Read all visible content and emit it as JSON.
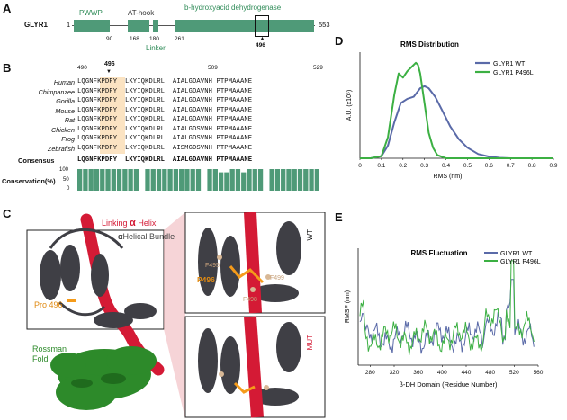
{
  "panels": {
    "a": "A",
    "b": "B",
    "c": "C",
    "d": "D",
    "e": "E"
  },
  "panel_a": {
    "protein": "GLYR1",
    "start": "1",
    "end": "553",
    "domains": {
      "pwwp": "PWWP",
      "athook": "AT-hook",
      "dehydrogenase": "b-hydroxyacid dehydrogenase",
      "linker": "Linker"
    },
    "positions": [
      "90",
      "168",
      "180",
      "261"
    ],
    "marker": "496"
  },
  "panel_b": {
    "positions": [
      "490",
      "496",
      "509",
      "529"
    ],
    "species": [
      "Human",
      "Chimpanzee",
      "Gorilla",
      "Mouse",
      "Rat",
      "Chicken",
      "Frog",
      "Zebrafish"
    ],
    "sequences": [
      "LQGNFKPDFY  LKYIQKDLRL  AIALGDAVNH PTPMAAANE",
      "LQGNFKPDFY  LKYIQKDLRL  AIALGDAVNH PTPMAAANE",
      "LQGNFKPDFY  LKYIQKDLRL  AIALGDAVNH PTPMAAANE",
      "LQGNFKPDFY  LKYIQKDLRL  AIALGDAVNH PTPMAAANE",
      "LQGNFKPDFY  LKYIQKDLRL  AIALGDAVNH PTPMAAANE",
      "LQGNFKPDFY  LKYIQKDLRL  AIALGDSVNH PTPMAAANE",
      "LQGNFKPDFY  LKYIQKDLRL  AIALGDSVNH PTPMAAANE",
      "LQGNFKPDFY  LKYIQKDLRL  AISMGDSVNH PTPMAAANE"
    ],
    "consensus_label": "Consensus",
    "consensus": "LQGNFKPDFY  LKYIQKDLRL  AIALGDAVNH PTPMAAANE",
    "conservation_label": "Conservation(%)",
    "conservation_ticks": [
      "100",
      "50",
      "0"
    ],
    "conservation_values": [
      100,
      100,
      100,
      100,
      100,
      100,
      100,
      100,
      100,
      100,
      100,
      0,
      100,
      100,
      100,
      100,
      100,
      100,
      100,
      100,
      100,
      100,
      0,
      100,
      100,
      85,
      85,
      100,
      100,
      85,
      100,
      100,
      100,
      0,
      100,
      100,
      100,
      100,
      100,
      100,
      100,
      100,
      100
    ]
  },
  "panel_c": {
    "linking_helix": "Linking",
    "alpha": "α",
    "helix": "Helix",
    "helical_bundle": "Helical Bundle",
    "pro496": "Pro 496",
    "rossman": "Rossman",
    "fold": "Fold",
    "wt": "WT",
    "mut": "MUT",
    "labels_top": [
      "F499",
      "F495",
      "F498"
    ],
    "p496": "P496"
  },
  "chart_data": [
    {
      "type": "line",
      "title": "RMS Distribution",
      "xlabel": "RMS (nm)",
      "ylabel": "A.U. (x10⁵)",
      "xlim": [
        0,
        0.9
      ],
      "ylim": [
        0,
        5
      ],
      "xticks": [
        "0",
        "0.1",
        "0.2",
        "0.3",
        "0.4",
        "0.5",
        "0.6",
        "0.7",
        "0.8",
        "0.9"
      ],
      "yticks": [
        "0",
        "1",
        "2",
        "3",
        "4",
        "5"
      ],
      "series": [
        {
          "name": "GLYR1 WT",
          "color": "#5a6aa8",
          "x": [
            0,
            0.05,
            0.1,
            0.13,
            0.16,
            0.19,
            0.22,
            0.25,
            0.28,
            0.3,
            0.32,
            0.35,
            0.38,
            0.42,
            0.46,
            0.5,
            0.55,
            0.6,
            0.65,
            0.7,
            0.9
          ],
          "y": [
            0,
            0,
            0.1,
            0.6,
            1.7,
            2.6,
            2.8,
            2.9,
            3.3,
            3.4,
            3.3,
            2.9,
            2.3,
            1.5,
            0.9,
            0.5,
            0.2,
            0.08,
            0.02,
            0,
            0
          ]
        },
        {
          "name": "GLYR1 P496L",
          "color": "#3cb043",
          "x": [
            0,
            0.05,
            0.1,
            0.13,
            0.16,
            0.18,
            0.2,
            0.22,
            0.24,
            0.26,
            0.27,
            0.28,
            0.3,
            0.32,
            0.34,
            0.36,
            0.4,
            0.9
          ],
          "y": [
            0,
            0,
            0.1,
            1.0,
            3.0,
            4.0,
            3.8,
            4.1,
            4.3,
            4.5,
            4.4,
            4.0,
            2.6,
            1.2,
            0.5,
            0.15,
            0,
            0
          ]
        }
      ],
      "legend": "top-right"
    },
    {
      "type": "line",
      "title": "RMS Fluctuation",
      "xlabel": "β-DH Domain (Residue Number)",
      "ylabel": "RMSF (nm)",
      "xlim": [
        260,
        560
      ],
      "ylim": [
        0,
        0.75
      ],
      "xticks": [
        "280",
        "320",
        "360",
        "400",
        "440",
        "480",
        "520",
        "560"
      ],
      "series": [
        {
          "name": "GLYR1 WT",
          "color": "#5a6aa8"
        },
        {
          "name": "GLYR1 P496L",
          "color": "#3cb043"
        }
      ],
      "legend": "top-right"
    }
  ]
}
